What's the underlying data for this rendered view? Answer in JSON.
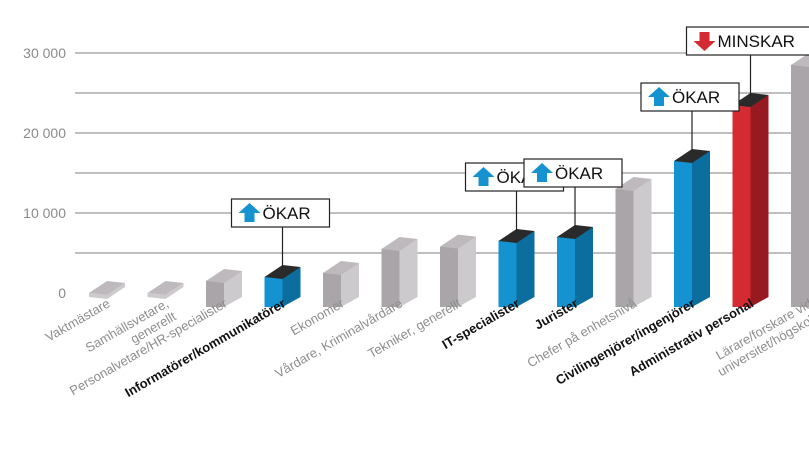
{
  "chart_data": {
    "type": "bar",
    "title": "",
    "xlabel": "",
    "ylabel": "",
    "ylim": [
      0,
      33000
    ],
    "yticks": [
      {
        "value": 0,
        "label": "0"
      },
      {
        "value": 10000,
        "label": "10 000"
      },
      {
        "value": 20000,
        "label": "20 000"
      },
      {
        "value": 30000,
        "label": "30 000"
      }
    ],
    "grid": true,
    "categories": [
      {
        "lines": [
          "Vaktmästare"
        ],
        "value": 0,
        "highlight": false,
        "trend": null
      },
      {
        "lines": [
          "Samhällsvetare,",
          "generellt"
        ],
        "value": 0,
        "highlight": false,
        "trend": null
      },
      {
        "lines": [
          "Personalvetare/HR-specialister"
        ],
        "value": 1500,
        "highlight": false,
        "trend": null
      },
      {
        "lines": [
          "Informatörer/kommunikatörer"
        ],
        "value": 2000,
        "highlight": true,
        "trend": "up"
      },
      {
        "lines": [
          "Ekonomer"
        ],
        "value": 2500,
        "highlight": false,
        "trend": null
      },
      {
        "lines": [
          "Vårdare, Kriminalvårdare"
        ],
        "value": 5500,
        "highlight": false,
        "trend": null
      },
      {
        "lines": [
          "Tekniker, generellt"
        ],
        "value": 5800,
        "highlight": false,
        "trend": null
      },
      {
        "lines": [
          "IT-specialister"
        ],
        "value": 6500,
        "highlight": true,
        "trend": "up"
      },
      {
        "lines": [
          "Jurister"
        ],
        "value": 7000,
        "highlight": true,
        "trend": "up"
      },
      {
        "lines": [
          "Chefer på enhetsnivå"
        ],
        "value": 13000,
        "highlight": false,
        "trend": null
      },
      {
        "lines": [
          "Civilingenjörer/ingenjörer"
        ],
        "value": 16500,
        "highlight": true,
        "trend": "up"
      },
      {
        "lines": [
          "Administrativ personal"
        ],
        "value": 23500,
        "highlight": true,
        "trend": "down"
      },
      {
        "lines": [
          "Lärare/forskare vid",
          "universitet/högskola"
        ],
        "value": 28500,
        "highlight": false,
        "trend": null
      }
    ],
    "trend_labels": {
      "up": "ÖKAR",
      "down": "MINSKAR"
    },
    "colors": {
      "grey_front": "#a9a5a9",
      "grey_side": "#cdcacd",
      "grey_top": "#bdb9bd",
      "blue_front": "#1592d0",
      "blue_side": "#0b6e9e",
      "top_dark": "#2a2a2a",
      "red_front": "#d42a32",
      "red_side": "#961a1f",
      "arrow_up": "#1592d0",
      "arrow_down": "#d42a32",
      "grid": "#555555",
      "box_border": "#222222"
    }
  }
}
